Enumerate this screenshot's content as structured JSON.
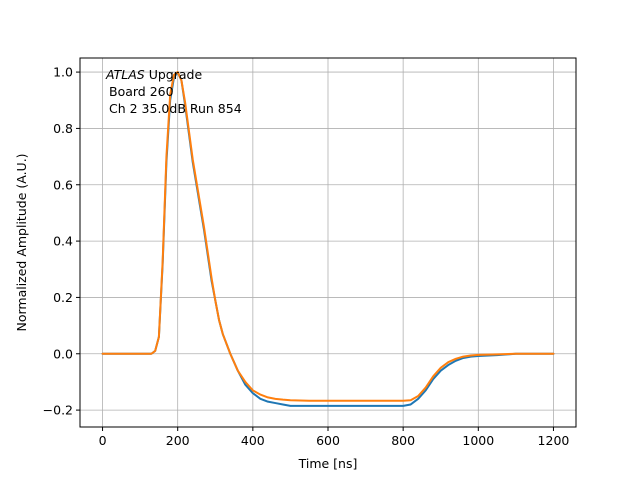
{
  "chart_data": {
    "type": "line",
    "title": "",
    "xlabel": "Time [ns]",
    "ylabel": "Normalized Amplitude (A.U.)",
    "xlim": [
      -60,
      1260
    ],
    "ylim": [
      -0.26,
      1.05
    ],
    "xticks": [
      0,
      200,
      400,
      600,
      800,
      1000,
      1200
    ],
    "yticks": [
      -0.2,
      0.0,
      0.2,
      0.4,
      0.6,
      0.8,
      1.0
    ],
    "xtick_labels": [
      "0",
      "200",
      "400",
      "600",
      "800",
      "1000",
      "1200"
    ],
    "ytick_labels": [
      "−0.2",
      "0.0",
      "0.2",
      "0.4",
      "0.6",
      "0.8",
      "1.0"
    ],
    "grid": true,
    "annotation": {
      "line1_italic": "ATLAS",
      "line1_rest": " Upgrade",
      "line2": "Board 260",
      "line3": "Ch 2 35.0dB  Run 854"
    },
    "series": [
      {
        "color": "#1f77b4",
        "x": [
          0,
          100,
          130,
          140,
          150,
          160,
          170,
          180,
          190,
          200,
          210,
          220,
          230,
          240,
          250,
          260,
          270,
          280,
          290,
          300,
          310,
          320,
          340,
          360,
          380,
          400,
          420,
          440,
          460,
          480,
          500,
          550,
          600,
          650,
          700,
          750,
          800,
          820,
          840,
          860,
          880,
          900,
          920,
          940,
          960,
          980,
          1000,
          1050,
          1100,
          1150,
          1200
        ],
        "y": [
          0.0,
          0.0,
          0.0,
          0.01,
          0.06,
          0.32,
          0.68,
          0.9,
          0.98,
          1.0,
          0.97,
          0.88,
          0.78,
          0.68,
          0.6,
          0.52,
          0.44,
          0.35,
          0.26,
          0.19,
          0.12,
          0.07,
          0.0,
          -0.06,
          -0.11,
          -0.14,
          -0.16,
          -0.17,
          -0.175,
          -0.18,
          -0.185,
          -0.185,
          -0.185,
          -0.185,
          -0.185,
          -0.185,
          -0.185,
          -0.18,
          -0.16,
          -0.13,
          -0.09,
          -0.06,
          -0.04,
          -0.025,
          -0.015,
          -0.01,
          -0.008,
          -0.005,
          0.0,
          0.0,
          0.0
        ]
      },
      {
        "color": "#ff7f0e",
        "x": [
          0,
          100,
          130,
          140,
          150,
          160,
          170,
          180,
          190,
          200,
          210,
          220,
          230,
          240,
          250,
          260,
          270,
          280,
          290,
          300,
          310,
          320,
          340,
          360,
          380,
          400,
          420,
          440,
          460,
          480,
          500,
          550,
          600,
          650,
          700,
          750,
          800,
          820,
          840,
          860,
          880,
          900,
          920,
          940,
          960,
          980,
          1000,
          1050,
          1100,
          1150,
          1200
        ],
        "y": [
          0.0,
          0.0,
          0.0,
          0.01,
          0.06,
          0.33,
          0.7,
          0.92,
          0.99,
          1.0,
          0.97,
          0.89,
          0.79,
          0.69,
          0.61,
          0.53,
          0.45,
          0.36,
          0.27,
          0.19,
          0.12,
          0.07,
          0.0,
          -0.06,
          -0.1,
          -0.13,
          -0.145,
          -0.155,
          -0.16,
          -0.163,
          -0.165,
          -0.167,
          -0.167,
          -0.167,
          -0.167,
          -0.167,
          -0.167,
          -0.165,
          -0.15,
          -0.12,
          -0.08,
          -0.05,
          -0.03,
          -0.018,
          -0.01,
          -0.006,
          -0.004,
          -0.002,
          0.0,
          0.0,
          0.0
        ]
      }
    ]
  }
}
